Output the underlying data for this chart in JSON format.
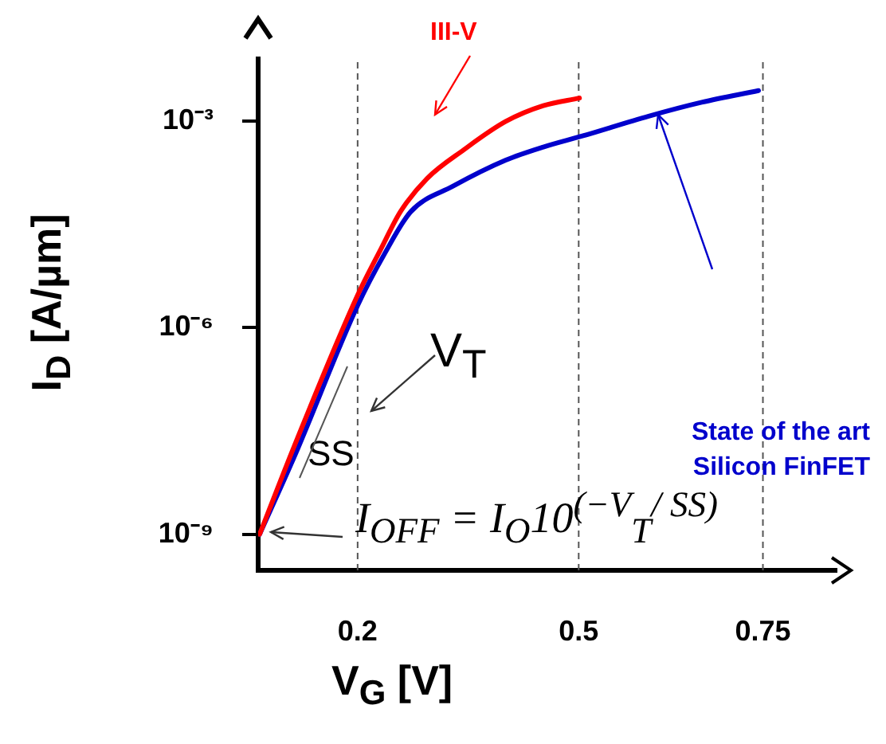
{
  "chart_data": {
    "type": "line",
    "xlabel": "V$_{G}$ [V]",
    "ylabel": "I$_{D}$ [A/µm]",
    "x": [
      0.067,
      0.114,
      0.2,
      0.232,
      0.258,
      0.294,
      0.344,
      0.401,
      0.452,
      0.501
    ],
    "series": [
      {
        "name": "III-V",
        "color": "#ff0000",
        "values": [
          1e-09,
          1.9e-08,
          2.95e-06,
          1.41e-05,
          4.79e-05,
          0.000145,
          0.00038,
          0.00098,
          0.00166,
          0.00214
        ]
      },
      {
        "name": "State of the art Silicon FinFET",
        "color": "#0000cc",
        "x": [
          0.067,
          0.115,
          0.2,
          0.237,
          0.272,
          0.329,
          0.401,
          0.452,
          0.505,
          0.595,
          0.667,
          0.744
        ],
        "values": [
          1e-09,
          1.41e-08,
          2.09e-06,
          1.2e-05,
          4.79e-05,
          0.000112,
          0.000269,
          0.000417,
          0.000603,
          0.00117,
          0.00186,
          0.00275
        ]
      }
    ],
    "xlim": [
      0.065,
      0.85
    ],
    "xticks": [
      0.2,
      0.5,
      0.75
    ],
    "log": "y",
    "ylim": [
      3e-10,
      0.008
    ],
    "yticks": [
      {
        "value": 1e-09,
        "label": "10⁻⁹"
      },
      {
        "value": 1e-06,
        "label": "10⁻⁶"
      },
      {
        "value": 0.001,
        "label": "10⁻³"
      }
    ],
    "ref_lines": [
      {
        "axis": "x",
        "value": 0.2,
        "color": "#555555",
        "line_style": "dashed"
      },
      {
        "axis": "x",
        "value": 0.5,
        "color": "#555555",
        "line_style": "dashed"
      },
      {
        "axis": "x",
        "value": 0.75,
        "color": "#555555",
        "line_style": "dashed"
      }
    ],
    "annotations": [
      "V$_{T}$",
      "SS",
      "I$_{OFF}$ = I$_{O}$10$^{(−V}$$_{T}$$^{/ SS)}$"
    ],
    "grid": false,
    "legend": false,
    "marker": "none",
    "line_style": "solid"
  }
}
